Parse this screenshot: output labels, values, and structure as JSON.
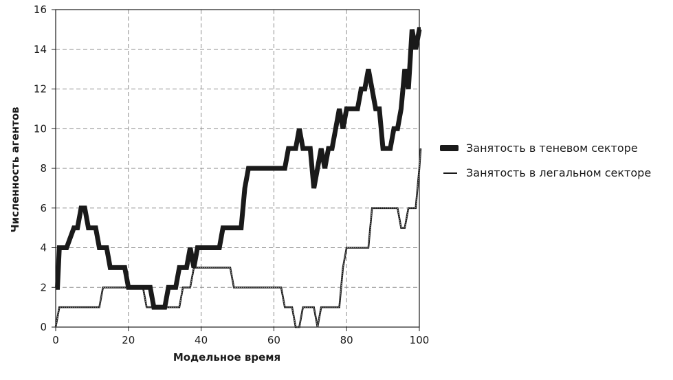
{
  "chart_data": {
    "type": "line",
    "title": "",
    "xlabel": "Модельное время",
    "ylabel": "Численность агентов",
    "xlim": [
      0,
      100
    ],
    "ylim": [
      0,
      16
    ],
    "x_ticks": [
      0,
      20,
      40,
      60,
      80,
      100
    ],
    "y_ticks": [
      0,
      2,
      4,
      6,
      8,
      10,
      12,
      14,
      16
    ],
    "grid": true,
    "legend_position": "right",
    "series": [
      {
        "name": "Занятость в теневом секторе",
        "color": "#1a1a1a",
        "style": "thick",
        "points": [
          [
            0,
            2
          ],
          [
            0.5,
            2
          ],
          [
            1,
            4
          ],
          [
            3,
            4
          ],
          [
            5,
            5
          ],
          [
            6,
            5
          ],
          [
            7,
            6
          ],
          [
            8,
            6
          ],
          [
            9,
            5
          ],
          [
            11,
            5
          ],
          [
            12,
            4
          ],
          [
            13,
            4
          ],
          [
            14,
            4
          ],
          [
            15,
            3
          ],
          [
            17,
            3
          ],
          [
            18,
            3
          ],
          [
            19,
            3
          ],
          [
            20,
            2
          ],
          [
            23,
            2
          ],
          [
            25,
            2
          ],
          [
            26,
            2
          ],
          [
            27,
            1
          ],
          [
            29,
            1
          ],
          [
            30,
            1
          ],
          [
            31,
            2
          ],
          [
            33,
            2
          ],
          [
            34,
            3
          ],
          [
            36,
            3
          ],
          [
            37,
            4
          ],
          [
            38,
            3
          ],
          [
            39,
            4
          ],
          [
            45,
            4
          ],
          [
            46,
            5
          ],
          [
            51,
            5
          ],
          [
            52,
            7
          ],
          [
            53,
            8
          ],
          [
            63,
            8
          ],
          [
            64,
            9
          ],
          [
            66,
            9
          ],
          [
            67,
            10
          ],
          [
            68,
            9
          ],
          [
            69,
            9
          ],
          [
            70,
            9
          ],
          [
            71,
            7
          ],
          [
            72,
            8
          ],
          [
            73,
            9
          ],
          [
            74,
            8
          ],
          [
            75,
            9
          ],
          [
            76,
            9
          ],
          [
            77,
            10
          ],
          [
            78,
            11
          ],
          [
            79,
            10
          ],
          [
            80,
            11
          ],
          [
            83,
            11
          ],
          [
            84,
            12
          ],
          [
            85,
            12
          ],
          [
            86,
            13
          ],
          [
            87,
            12
          ],
          [
            88,
            11
          ],
          [
            89,
            11
          ],
          [
            90,
            9
          ],
          [
            92,
            9
          ],
          [
            93,
            10
          ],
          [
            94,
            10
          ],
          [
            95,
            11
          ],
          [
            96,
            13
          ],
          [
            97,
            12
          ],
          [
            98,
            15
          ],
          [
            99,
            14
          ],
          [
            100,
            15
          ],
          [
            101,
            15
          ]
        ]
      },
      {
        "name": "Занятость в легальном секторе",
        "color": "#1a1a1a",
        "style": "thin",
        "points": [
          [
            0,
            0
          ],
          [
            1,
            1
          ],
          [
            12,
            1
          ],
          [
            13,
            2
          ],
          [
            24,
            2
          ],
          [
            25,
            1
          ],
          [
            34,
            1
          ],
          [
            35,
            2
          ],
          [
            37,
            2
          ],
          [
            38,
            3
          ],
          [
            48,
            3
          ],
          [
            49,
            2
          ],
          [
            62,
            2
          ],
          [
            63,
            1
          ],
          [
            65,
            1
          ],
          [
            66,
            0
          ],
          [
            67,
            0
          ],
          [
            68,
            1
          ],
          [
            71,
            1
          ],
          [
            72,
            0
          ],
          [
            73,
            1
          ],
          [
            78,
            1
          ],
          [
            79,
            3
          ],
          [
            80,
            4
          ],
          [
            86,
            4
          ],
          [
            87,
            6
          ],
          [
            94,
            6
          ],
          [
            95,
            5
          ],
          [
            96,
            5
          ],
          [
            97,
            6
          ],
          [
            99,
            6
          ],
          [
            100,
            8
          ],
          [
            101,
            9
          ]
        ]
      }
    ]
  }
}
